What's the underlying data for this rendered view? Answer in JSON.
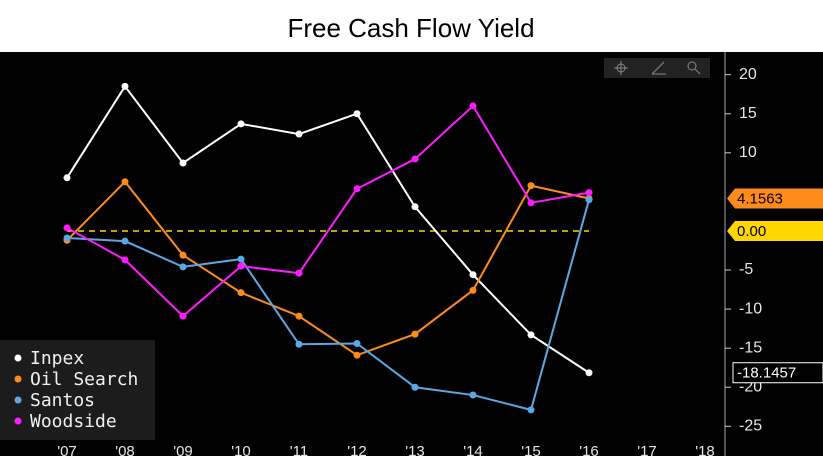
{
  "chart_data": {
    "type": "line",
    "title": "Free Cash Flow Yield",
    "categories": [
      "'07",
      "'08",
      "'09",
      "'10",
      "'11",
      "'12",
      "'13",
      "'14",
      "'15",
      "'16",
      "'17",
      "'18"
    ],
    "series": [
      {
        "name": "Inpex",
        "color": "#ffffff",
        "values": [
          6.8,
          18.5,
          8.7,
          13.7,
          12.4,
          15.0,
          3.1,
          -5.6,
          -13.3,
          -18.1457,
          null,
          null
        ],
        "value_labels": [
          null,
          null,
          null,
          null,
          null,
          null,
          null,
          null,
          null,
          "-18.1457",
          null,
          null
        ]
      },
      {
        "name": "Oil Search",
        "color": "#ff8c1a",
        "values": [
          -1.2,
          6.3,
          -3.1,
          -7.9,
          -10.9,
          -15.9,
          -13.2,
          -7.6,
          5.8,
          4.1563,
          null,
          null
        ],
        "value_labels": [
          null,
          null,
          null,
          null,
          null,
          null,
          null,
          null,
          null,
          "4.1563",
          null,
          null
        ]
      },
      {
        "name": "Santos",
        "color": "#5aa9e6",
        "values": [
          -0.9,
          -1.3,
          -4.6,
          -3.6,
          -14.5,
          -14.4,
          -20.0,
          -21.0,
          -22.9,
          4.0,
          null,
          null
        ]
      },
      {
        "name": "Woodside",
        "color": "#ff1aff",
        "values": [
          0.4,
          -3.7,
          -10.9,
          -4.5,
          -5.4,
          5.4,
          9.2,
          16.0,
          3.6,
          4.9,
          null,
          null
        ]
      }
    ],
    "reference_line": {
      "value": 0,
      "label": "0.00",
      "color": "#ffd700"
    },
    "ylim": [
      -28.8,
      22.9
    ],
    "yticks": [
      -25,
      -20,
      -15,
      -10,
      -5,
      10,
      15,
      20
    ],
    "legend": "bottom-left"
  }
}
